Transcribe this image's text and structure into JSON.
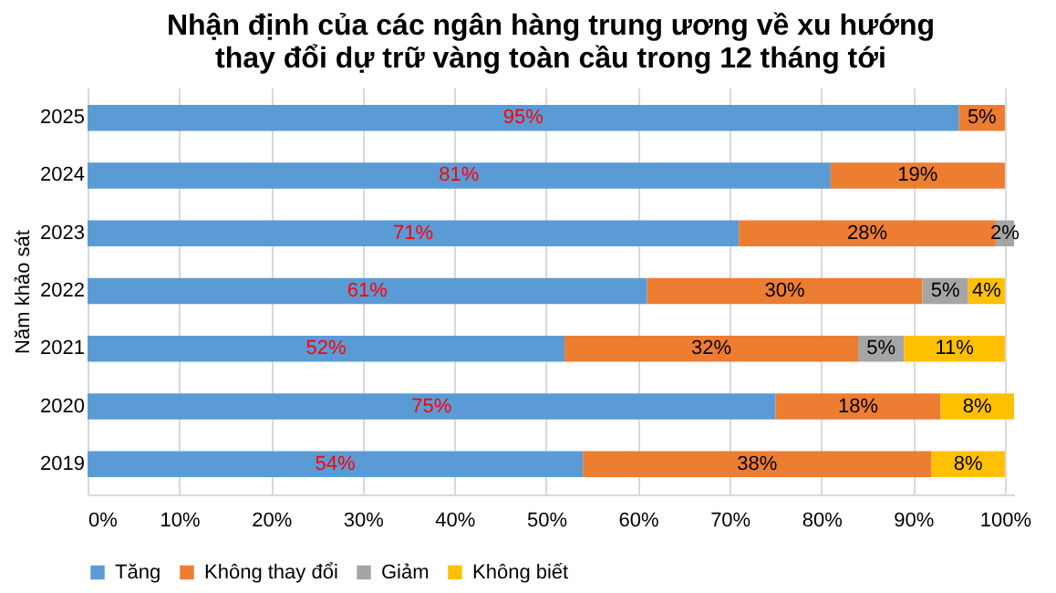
{
  "chart_data": {
    "type": "bar",
    "orientation": "horizontal",
    "stacked": true,
    "title": "Nhận định của các ngân hàng trung ương về xu hướng\nthay đổi dự trữ vàng toàn cầu trong 12 tháng tới",
    "ylabel": "Năm khảo sát",
    "categories": [
      "2025",
      "2024",
      "2023",
      "2022",
      "2021",
      "2020",
      "2019"
    ],
    "series": [
      {
        "name": "Tăng",
        "color": "#5b9bd5",
        "values": [
          95,
          81,
          71,
          61,
          52,
          75,
          54
        ],
        "value_labels": [
          "95%",
          "81%",
          "71%",
          "61%",
          "52%",
          "75%",
          "54%"
        ]
      },
      {
        "name": "Không thay đổi",
        "color": "#ed7d31",
        "values": [
          5,
          19,
          28,
          30,
          32,
          18,
          38
        ],
        "value_labels": [
          "5%",
          "19%",
          "28%",
          "30%",
          "32%",
          "18%",
          "38%"
        ]
      },
      {
        "name": "Giảm",
        "color": "#a5a5a5",
        "values": [
          null,
          null,
          2,
          5,
          5,
          null,
          null
        ],
        "value_labels": [
          null,
          null,
          "2%",
          "5%",
          "5%",
          null,
          null
        ]
      },
      {
        "name": "Không biết",
        "color": "#ffc000",
        "values": [
          null,
          null,
          null,
          4,
          11,
          8,
          8
        ],
        "value_labels": [
          null,
          null,
          null,
          "4%",
          "11%",
          "8%",
          "8%"
        ]
      }
    ],
    "xlim": [
      0,
      101
    ],
    "xticks": [
      {
        "value": 0,
        "label": "0%"
      },
      {
        "value": 10,
        "label": "10%"
      },
      {
        "value": 20,
        "label": "20%"
      },
      {
        "value": 30,
        "label": "30%"
      },
      {
        "value": 40,
        "label": "40%"
      },
      {
        "value": 50,
        "label": "50%"
      },
      {
        "value": 60,
        "label": "60%"
      },
      {
        "value": 70,
        "label": "70%"
      },
      {
        "value": 80,
        "label": "80%"
      },
      {
        "value": 90,
        "label": "90%"
      },
      {
        "value": 100,
        "label": "100%"
      }
    ],
    "grid": "x",
    "legend": "bottom"
  }
}
